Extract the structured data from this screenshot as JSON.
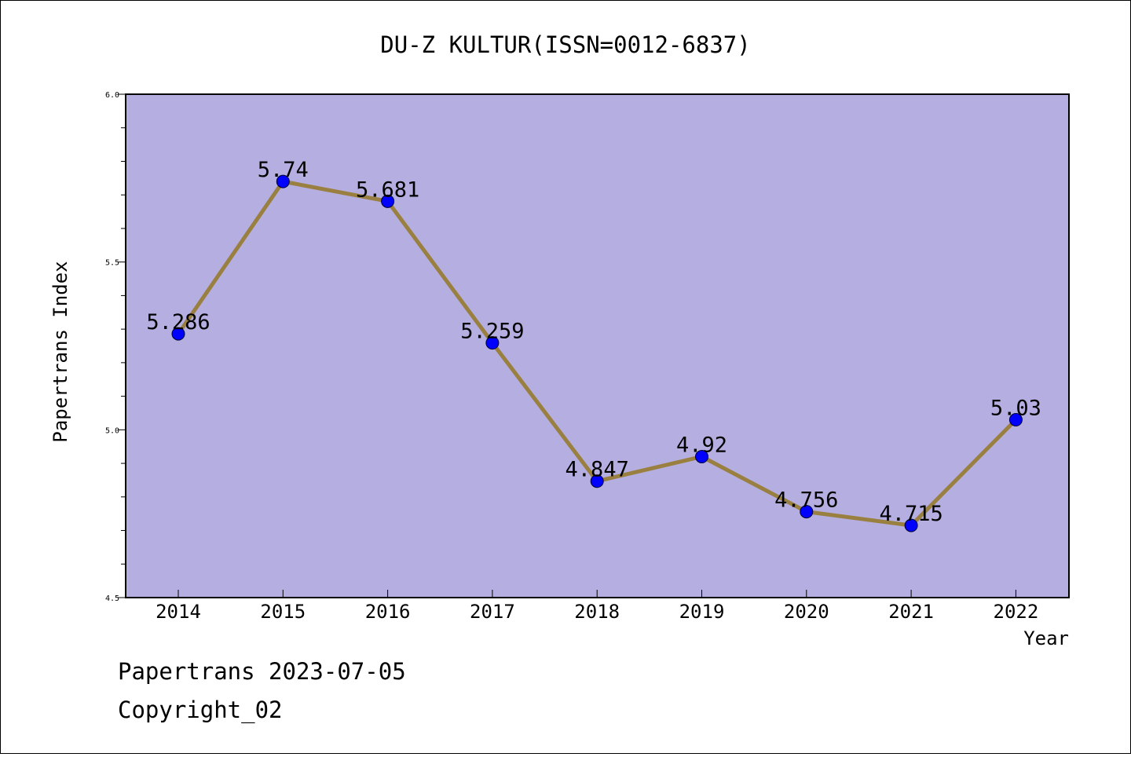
{
  "chart_data": {
    "type": "line",
    "title": "DU-Z KULTUR(ISSN=0012-6837)",
    "xlabel": "Year",
    "ylabel": "Papertrans Index",
    "categories": [
      "2014",
      "2015",
      "2016",
      "2017",
      "2018",
      "2019",
      "2020",
      "2021",
      "2022"
    ],
    "series": [
      {
        "values": [
          5.286,
          5.74,
          5.681,
          5.259,
          4.847,
          4.92,
          4.756,
          4.715,
          5.03
        ]
      }
    ],
    "data_labels": [
      "5.286",
      "5.74",
      "5.681",
      "5.259",
      "4.847",
      "4.92",
      "4.756",
      "4.715",
      "5.03"
    ],
    "ylim": [
      4.5,
      6.0
    ],
    "y_ticks": [
      "4.5",
      "5.0",
      "5.5",
      "6.0"
    ],
    "grid": false,
    "plot_background": "#b5aee1",
    "line_color": "#9a8040",
    "marker_color": "#0000ff"
  },
  "footer": {
    "line1": "Papertrans 2023-07-05",
    "line2": "Copyright_02"
  }
}
